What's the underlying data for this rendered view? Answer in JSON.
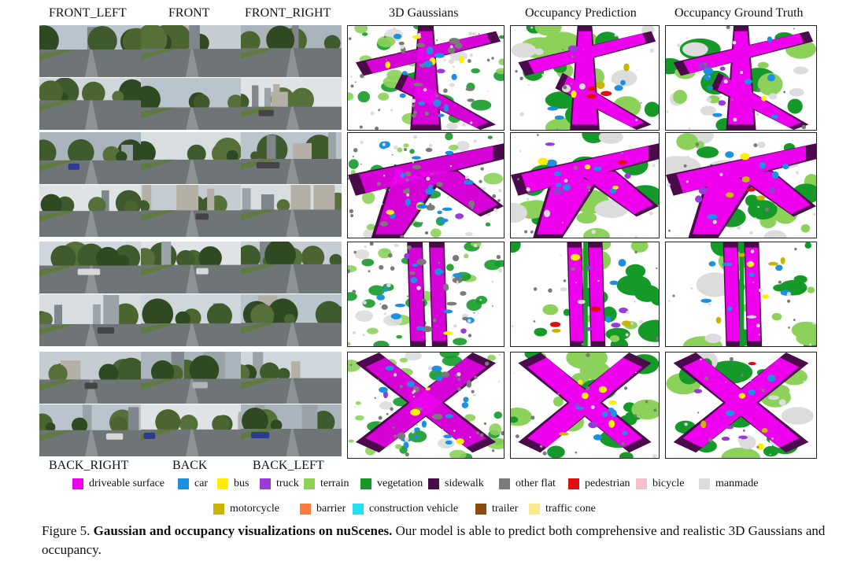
{
  "camera_labels_top": [
    "FRONT_LEFT",
    "FRONT",
    "FRONT_RIGHT"
  ],
  "camera_labels_bottom": [
    "BACK_RIGHT",
    "BACK",
    "BACK_LEFT"
  ],
  "panel_headers": [
    "3D Gaussians",
    "Occupancy Prediction",
    "Occupancy Ground Truth"
  ],
  "legend": [
    {
      "label": "driveable surface",
      "color": "#ee00ee"
    },
    {
      "label": "car",
      "color": "#1e90e0"
    },
    {
      "label": "bus",
      "color": "#ffee00"
    },
    {
      "label": "truck",
      "color": "#9a3ad8"
    },
    {
      "label": "terrain",
      "color": "#8cd25a"
    },
    {
      "label": "vegetation",
      "color": "#159a2a"
    },
    {
      "label": "sidewalk",
      "color": "#4b0a4b"
    },
    {
      "label": "other flat",
      "color": "#7a7a7a"
    },
    {
      "label": "pedestrian",
      "color": "#e01010"
    },
    {
      "label": "bicycle",
      "color": "#f5c0cb"
    },
    {
      "label": "manmade",
      "color": "#dcdcdc"
    },
    {
      "label": "motorcycle",
      "color": "#c9b400"
    },
    {
      "label": "barrier",
      "color": "#ff7a3d"
    },
    {
      "label": "construction vehicle",
      "color": "#22e0f0"
    },
    {
      "label": "trailer",
      "color": "#8b4a10"
    },
    {
      "label": "traffic cone",
      "color": "#f8e98a"
    }
  ],
  "caption": {
    "prefix": "Figure 5.",
    "bold": "Gaussian and occupancy visualizations on nuScenes.",
    "rest": "Our model is able to predict both comprehensive and realistic 3D Gaussians and occupancy."
  }
}
